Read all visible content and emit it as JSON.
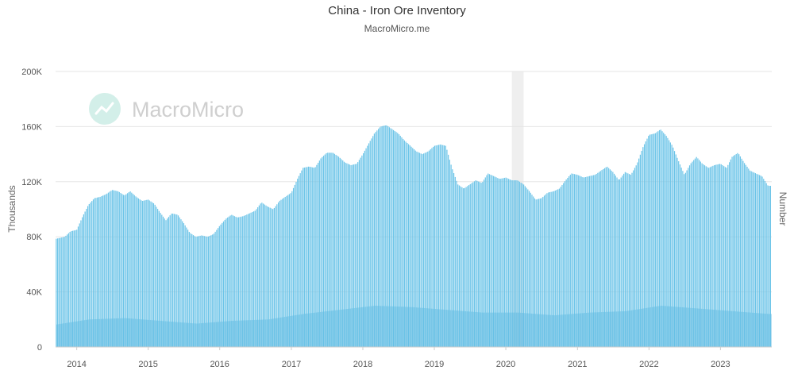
{
  "chart_data": {
    "type": "bar",
    "title": "China - Iron Ore Inventory",
    "subtitle": "MacroMicro.me",
    "watermark": "MacroMicro",
    "ylabel": "Thousands",
    "ylabel_right": "Number",
    "ylim": [
      0,
      200000
    ],
    "yticks": [
      0,
      40000,
      80000,
      120000,
      160000,
      200000
    ],
    "ytick_labels": [
      "0",
      "40K",
      "80K",
      "120K",
      "160K",
      "200K"
    ],
    "xticks": [
      "2014",
      "2015",
      "2016",
      "2017",
      "2018",
      "2019",
      "2020",
      "2021",
      "2022",
      "2023"
    ],
    "xlim": [
      "2013-09-15",
      "2023-09-20"
    ],
    "grid": true,
    "bar_color": "#6cc4e8",
    "shaded_band": {
      "start": "2020-02-01",
      "end": "2020-04-01",
      "color": "#efefef"
    },
    "series": [
      {
        "unit": "monthly",
        "points": [
          [
            "2013-09",
            78000
          ],
          [
            "2013-10",
            79000
          ],
          [
            "2013-11",
            80000
          ],
          [
            "2013-12",
            84000
          ],
          [
            "2014-01",
            85000
          ],
          [
            "2014-02",
            95000
          ],
          [
            "2014-03",
            103000
          ],
          [
            "2014-04",
            108000
          ],
          [
            "2014-05",
            109000
          ],
          [
            "2014-06",
            111000
          ],
          [
            "2014-07",
            114000
          ],
          [
            "2014-08",
            113000
          ],
          [
            "2014-09",
            110000
          ],
          [
            "2014-10",
            113000
          ],
          [
            "2014-11",
            109000
          ],
          [
            "2014-12",
            106000
          ],
          [
            "2015-01",
            107000
          ],
          [
            "2015-02",
            104000
          ],
          [
            "2015-03",
            98000
          ],
          [
            "2015-04",
            92000
          ],
          [
            "2015-05",
            97000
          ],
          [
            "2015-06",
            96000
          ],
          [
            "2015-07",
            90000
          ],
          [
            "2015-08",
            83000
          ],
          [
            "2015-09",
            80000
          ],
          [
            "2015-10",
            81000
          ],
          [
            "2015-11",
            80000
          ],
          [
            "2015-12",
            82000
          ],
          [
            "2016-01",
            88000
          ],
          [
            "2016-02",
            93000
          ],
          [
            "2016-03",
            96000
          ],
          [
            "2016-04",
            94000
          ],
          [
            "2016-05",
            95000
          ],
          [
            "2016-06",
            97000
          ],
          [
            "2016-07",
            99000
          ],
          [
            "2016-08",
            105000
          ],
          [
            "2016-09",
            102000
          ],
          [
            "2016-10",
            100000
          ],
          [
            "2016-11",
            106000
          ],
          [
            "2016-12",
            109000
          ],
          [
            "2017-01",
            112000
          ],
          [
            "2017-02",
            122000
          ],
          [
            "2017-03",
            130000
          ],
          [
            "2017-04",
            131000
          ],
          [
            "2017-05",
            130000
          ],
          [
            "2017-06",
            137000
          ],
          [
            "2017-07",
            141000
          ],
          [
            "2017-08",
            141000
          ],
          [
            "2017-09",
            138000
          ],
          [
            "2017-10",
            134000
          ],
          [
            "2017-11",
            132000
          ],
          [
            "2017-12",
            133000
          ],
          [
            "2018-01",
            140000
          ],
          [
            "2018-02",
            148000
          ],
          [
            "2018-03",
            155000
          ],
          [
            "2018-04",
            160000
          ],
          [
            "2018-05",
            161000
          ],
          [
            "2018-06",
            158000
          ],
          [
            "2018-07",
            155000
          ],
          [
            "2018-08",
            150000
          ],
          [
            "2018-09",
            146000
          ],
          [
            "2018-10",
            142000
          ],
          [
            "2018-11",
            140000
          ],
          [
            "2018-12",
            142000
          ],
          [
            "2019-01",
            146000
          ],
          [
            "2019-02",
            147000
          ],
          [
            "2019-03",
            146000
          ],
          [
            "2019-04",
            130000
          ],
          [
            "2019-05",
            118000
          ],
          [
            "2019-06",
            115000
          ],
          [
            "2019-07",
            118000
          ],
          [
            "2019-08",
            121000
          ],
          [
            "2019-09",
            119000
          ],
          [
            "2019-10",
            126000
          ],
          [
            "2019-11",
            124000
          ],
          [
            "2019-12",
            122000
          ],
          [
            "2020-01",
            123000
          ],
          [
            "2020-02",
            121000
          ],
          [
            "2020-03",
            121000
          ],
          [
            "2020-04",
            118000
          ],
          [
            "2020-05",
            113000
          ],
          [
            "2020-06",
            107000
          ],
          [
            "2020-07",
            108000
          ],
          [
            "2020-08",
            112000
          ],
          [
            "2020-09",
            113000
          ],
          [
            "2020-10",
            115000
          ],
          [
            "2020-11",
            121000
          ],
          [
            "2020-12",
            126000
          ],
          [
            "2021-01",
            125000
          ],
          [
            "2021-02",
            123000
          ],
          [
            "2021-03",
            124000
          ],
          [
            "2021-04",
            125000
          ],
          [
            "2021-05",
            128000
          ],
          [
            "2021-06",
            131000
          ],
          [
            "2021-07",
            127000
          ],
          [
            "2021-08",
            121000
          ],
          [
            "2021-09",
            127000
          ],
          [
            "2021-10",
            125000
          ],
          [
            "2021-11",
            133000
          ],
          [
            "2021-12",
            145000
          ],
          [
            "2022-01",
            154000
          ],
          [
            "2022-02",
            155000
          ],
          [
            "2022-03",
            158000
          ],
          [
            "2022-04",
            153000
          ],
          [
            "2022-05",
            146000
          ],
          [
            "2022-06",
            135000
          ],
          [
            "2022-07",
            125000
          ],
          [
            "2022-08",
            133000
          ],
          [
            "2022-09",
            138000
          ],
          [
            "2022-10",
            133000
          ],
          [
            "2022-11",
            130000
          ],
          [
            "2022-12",
            132000
          ],
          [
            "2023-01",
            133000
          ],
          [
            "2023-02",
            130000
          ],
          [
            "2023-03",
            138000
          ],
          [
            "2023-04",
            141000
          ],
          [
            "2023-05",
            134000
          ],
          [
            "2023-06",
            128000
          ],
          [
            "2023-07",
            126000
          ],
          [
            "2023-08",
            124000
          ],
          [
            "2023-09",
            117000
          ]
        ]
      },
      {
        "unit": "monthly",
        "points": [
          [
            "2013-09",
            16000
          ],
          [
            "2014-03",
            20000
          ],
          [
            "2014-09",
            21000
          ],
          [
            "2015-03",
            19000
          ],
          [
            "2015-09",
            17000
          ],
          [
            "2016-03",
            19000
          ],
          [
            "2016-09",
            20000
          ],
          [
            "2017-03",
            24000
          ],
          [
            "2017-09",
            27000
          ],
          [
            "2018-03",
            30000
          ],
          [
            "2018-09",
            29000
          ],
          [
            "2019-03",
            27000
          ],
          [
            "2019-09",
            25000
          ],
          [
            "2020-03",
            25000
          ],
          [
            "2020-09",
            23000
          ],
          [
            "2021-03",
            25000
          ],
          [
            "2021-09",
            26000
          ],
          [
            "2022-03",
            30000
          ],
          [
            "2022-09",
            28000
          ],
          [
            "2023-03",
            26000
          ],
          [
            "2023-09",
            24000
          ]
        ]
      }
    ]
  }
}
